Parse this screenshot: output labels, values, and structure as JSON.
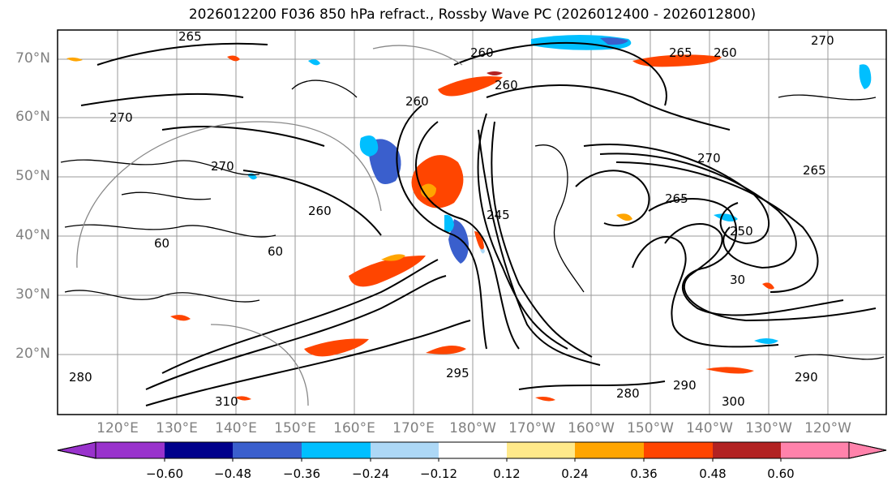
{
  "title": "2026012200 F036 850 hPa refract., Rossby Wave PC (2026012400 - 2026012800)",
  "latitude_labels": [
    "70°N",
    "60°N",
    "50°N",
    "40°N",
    "30°N",
    "20°N"
  ],
  "longitude_labels": [
    "120°E",
    "130°E",
    "140°E",
    "150°E",
    "160°E",
    "170°E",
    "180°W",
    "170°W",
    "160°W",
    "150°W",
    "140°W",
    "130°W",
    "120°W"
  ],
  "contour_labels": [
    "265",
    "260",
    "265",
    "260",
    "270",
    "260",
    "270",
    "270",
    "260",
    "260",
    "245",
    "265",
    "250",
    "270",
    "290",
    "295",
    "280",
    "290",
    "300",
    "310",
    "280",
    "265",
    "60",
    "60",
    "30"
  ],
  "colorbar": {
    "ticks": [
      "−0.60",
      "−0.48",
      "−0.36",
      "−0.24",
      "−0.12",
      "0.12",
      "0.24",
      "0.36",
      "0.48",
      "0.60"
    ],
    "colors": [
      "#9932cc",
      "#00008b",
      "#3a5fcd",
      "#00bfff",
      "#add8f6",
      "#ffffff",
      "#ffe98a",
      "#ffa500",
      "#ff4500",
      "#b22222",
      "#ff82ab"
    ]
  }
}
